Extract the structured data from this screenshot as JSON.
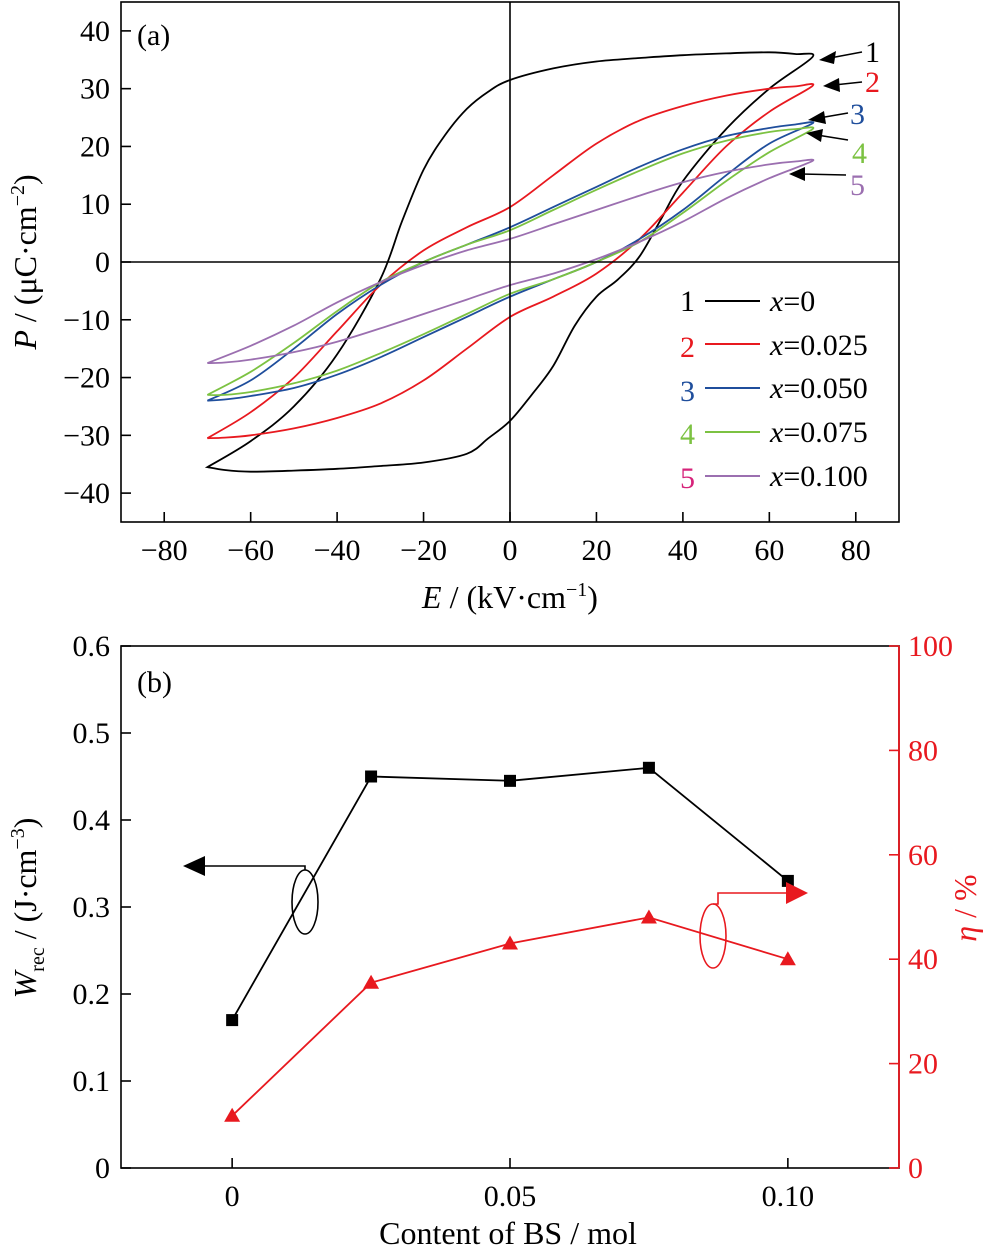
{
  "chart_data": [
    {
      "panel_label": "(a)",
      "type": "line",
      "xlabel": {
        "var": "E",
        "unit": " / (kV·cm",
        "exp": "−1",
        "close": ")"
      },
      "ylabel": {
        "var": "P",
        "unit": " / (μC·cm",
        "exp": "−2",
        "close": ")"
      },
      "xlim": [
        -90,
        90
      ],
      "ylim": [
        -45,
        45
      ],
      "xticks": [
        -80,
        -60,
        -40,
        -20,
        0,
        20,
        40,
        60,
        80
      ],
      "xtick_labels": [
        "−80",
        "−60",
        "−40",
        "−20",
        "0",
        "20",
        "40",
        "60",
        "80"
      ],
      "yticks": [
        -40,
        -30,
        -20,
        -10,
        0,
        10,
        20,
        30,
        40
      ],
      "ytick_labels": [
        "−40",
        "−30",
        "−20",
        "−10",
        "0",
        "10",
        "20",
        "30",
        "40"
      ],
      "legend_position": "bottom-right",
      "legend": [
        {
          "num": "1",
          "var": "x",
          "value": "=0"
        },
        {
          "num": "2",
          "var": "x",
          "value": "=0.025"
        },
        {
          "num": "3",
          "var": "x",
          "value": "=0.050"
        },
        {
          "num": "4",
          "var": "x",
          "value": "=0.075"
        },
        {
          "num": "5",
          "var": "x",
          "value": "=0.100"
        }
      ],
      "series": [
        {
          "id": "1",
          "color": "#000000",
          "num_color": "#000000",
          "upper": [
            [
              -70,
              -35.5
            ],
            [
              -60,
              -31
            ],
            [
              -50,
              -25
            ],
            [
              -40,
              -16
            ],
            [
              -30,
              -3
            ],
            [
              -25,
              7
            ],
            [
              -20,
              16
            ],
            [
              -15,
              22
            ],
            [
              -10,
              26.5
            ],
            [
              -5,
              29.5
            ],
            [
              0,
              31.5
            ],
            [
              10,
              33.5
            ],
            [
              20,
              34.7
            ],
            [
              30,
              35.3
            ],
            [
              40,
              35.8
            ],
            [
              50,
              36.1
            ],
            [
              60,
              36.3
            ],
            [
              66,
              36
            ],
            [
              70,
              35.5
            ]
          ],
          "lower": [
            [
              -70,
              -35.5
            ],
            [
              -66,
              -36
            ],
            [
              -60,
              -36.3
            ],
            [
              -50,
              -36.1
            ],
            [
              -40,
              -35.8
            ],
            [
              -30,
              -35.3
            ],
            [
              -20,
              -34.7
            ],
            [
              -10,
              -33.2
            ],
            [
              -5,
              -30.5
            ],
            [
              0,
              -27.5
            ],
            [
              5,
              -23
            ],
            [
              10,
              -18
            ],
            [
              15,
              -11
            ],
            [
              20,
              -6
            ],
            [
              25,
              -3
            ],
            [
              30,
              1
            ],
            [
              35,
              7.5
            ],
            [
              40,
              14
            ],
            [
              50,
              23
            ],
            [
              60,
              30
            ],
            [
              70,
              35.5
            ]
          ]
        },
        {
          "id": "2",
          "color": "#e8191f",
          "num_color": "#e8191f",
          "upper": [
            [
              -70,
              -30.5
            ],
            [
              -60,
              -26
            ],
            [
              -50,
              -20
            ],
            [
              -40,
              -12
            ],
            [
              -30,
              -4
            ],
            [
              -20,
              2
            ],
            [
              -10,
              6
            ],
            [
              0,
              9.5
            ],
            [
              10,
              15
            ],
            [
              20,
              20.5
            ],
            [
              30,
              24.5
            ],
            [
              40,
              27
            ],
            [
              50,
              28.8
            ],
            [
              60,
              30
            ],
            [
              66,
              30.4
            ],
            [
              70,
              30.5
            ]
          ],
          "lower": [
            [
              -70,
              -30.5
            ],
            [
              -66,
              -30.4
            ],
            [
              -60,
              -30
            ],
            [
              -50,
              -28.8
            ],
            [
              -40,
              -27
            ],
            [
              -30,
              -24.5
            ],
            [
              -20,
              -20.5
            ],
            [
              -10,
              -15
            ],
            [
              0,
              -9.5
            ],
            [
              10,
              -6
            ],
            [
              20,
              -2
            ],
            [
              30,
              4
            ],
            [
              40,
              12
            ],
            [
              50,
              20
            ],
            [
              60,
              26
            ],
            [
              70,
              30.5
            ]
          ]
        },
        {
          "id": "3",
          "color": "#1f4e9c",
          "num_color": "#1f4e9c",
          "upper": [
            [
              -70,
              -24
            ],
            [
              -60,
              -20.5
            ],
            [
              -50,
              -15
            ],
            [
              -40,
              -9
            ],
            [
              -30,
              -4
            ],
            [
              -20,
              0
            ],
            [
              -10,
              3
            ],
            [
              0,
              6
            ],
            [
              10,
              9.5
            ],
            [
              20,
              13
            ],
            [
              30,
              16.5
            ],
            [
              40,
              19.5
            ],
            [
              50,
              21.8
            ],
            [
              60,
              23.2
            ],
            [
              66,
              23.8
            ],
            [
              70,
              24
            ]
          ],
          "lower": [
            [
              -70,
              -24
            ],
            [
              -66,
              -23.8
            ],
            [
              -60,
              -23.2
            ],
            [
              -50,
              -21.8
            ],
            [
              -40,
              -19.5
            ],
            [
              -30,
              -16.5
            ],
            [
              -20,
              -13
            ],
            [
              -10,
              -9.5
            ],
            [
              0,
              -6
            ],
            [
              10,
              -3
            ],
            [
              20,
              0
            ],
            [
              30,
              4
            ],
            [
              40,
              9
            ],
            [
              50,
              15
            ],
            [
              60,
              20.5
            ],
            [
              70,
              24
            ]
          ]
        },
        {
          "id": "4",
          "color": "#7cc242",
          "num_color": "#7cc242",
          "upper": [
            [
              -70,
              -23
            ],
            [
              -60,
              -19
            ],
            [
              -50,
              -14
            ],
            [
              -40,
              -8.5
            ],
            [
              -30,
              -3.5
            ],
            [
              -20,
              0
            ],
            [
              -10,
              3
            ],
            [
              0,
              5.5
            ],
            [
              10,
              9
            ],
            [
              20,
              12.5
            ],
            [
              30,
              15.8
            ],
            [
              40,
              18.8
            ],
            [
              50,
              21
            ],
            [
              60,
              22.5
            ],
            [
              66,
              23
            ],
            [
              70,
              23
            ]
          ],
          "lower": [
            [
              -70,
              -23
            ],
            [
              -66,
              -23
            ],
            [
              -60,
              -22.5
            ],
            [
              -50,
              -21
            ],
            [
              -40,
              -18.8
            ],
            [
              -30,
              -15.8
            ],
            [
              -20,
              -12.5
            ],
            [
              -10,
              -9
            ],
            [
              0,
              -5.5
            ],
            [
              10,
              -3
            ],
            [
              20,
              0
            ],
            [
              30,
              3.5
            ],
            [
              40,
              8.5
            ],
            [
              50,
              14
            ],
            [
              60,
              19
            ],
            [
              70,
              23
            ]
          ]
        },
        {
          "id": "5",
          "color": "#9b6fb0",
          "num_color": "#9b6fb0",
          "num_legend_color": "#d6237a",
          "upper": [
            [
              -70,
              -17.5
            ],
            [
              -60,
              -14.5
            ],
            [
              -50,
              -11
            ],
            [
              -40,
              -7
            ],
            [
              -30,
              -3.5
            ],
            [
              -20,
              -0.5
            ],
            [
              -10,
              2
            ],
            [
              0,
              4
            ],
            [
              10,
              6.5
            ],
            [
              20,
              9
            ],
            [
              30,
              11.5
            ],
            [
              40,
              13.8
            ],
            [
              50,
              15.6
            ],
            [
              60,
              16.9
            ],
            [
              66,
              17.4
            ],
            [
              70,
              17.5
            ]
          ],
          "lower": [
            [
              -70,
              -17.5
            ],
            [
              -66,
              -17.4
            ],
            [
              -60,
              -16.9
            ],
            [
              -50,
              -15.6
            ],
            [
              -40,
              -13.8
            ],
            [
              -30,
              -11.5
            ],
            [
              -20,
              -9
            ],
            [
              -10,
              -6.5
            ],
            [
              0,
              -4
            ],
            [
              10,
              -2
            ],
            [
              20,
              0.5
            ],
            [
              30,
              3.5
            ],
            [
              40,
              7
            ],
            [
              50,
              11
            ],
            [
              60,
              14.5
            ],
            [
              70,
              17.5
            ]
          ]
        }
      ]
    },
    {
      "panel_label": "(b)",
      "type": "line",
      "xlabel": "Content of BS / mol",
      "ylabel_left": {
        "var": "W",
        "sub": "rec",
        "unit": " / (J·cm",
        "exp": "−3",
        "close": ")"
      },
      "ylabel_right": {
        "var": "η",
        "unit": " / %"
      },
      "xlim": [
        -0.02,
        0.12
      ],
      "ylim_left": [
        0,
        0.6
      ],
      "ylim_right": [
        0,
        100
      ],
      "xticks": [
        0,
        0.05,
        0.1
      ],
      "xtick_labels": [
        "0",
        "0.05",
        "0.10"
      ],
      "yticks_left": [
        0,
        0.1,
        0.2,
        0.3,
        0.4,
        0.5,
        0.6
      ],
      "ytick_labels_left": [
        "0",
        "0.1",
        "0.2",
        "0.3",
        "0.4",
        "0.5",
        "0.6"
      ],
      "yticks_right": [
        0,
        20,
        40,
        60,
        80,
        100
      ],
      "ytick_labels_right": [
        "0",
        "20",
        "40",
        "60",
        "80",
        "100"
      ],
      "x": [
        0,
        0.025,
        0.05,
        0.075,
        0.1
      ],
      "series": [
        {
          "axis": "left",
          "color": "#000000",
          "marker": "square",
          "values": [
            0.17,
            0.45,
            0.445,
            0.46,
            0.33
          ]
        },
        {
          "axis": "right",
          "color": "#e8191f",
          "marker": "triangle",
          "values": [
            10,
            35.5,
            43,
            48,
            40
          ]
        }
      ],
      "axis_color_right": "#e8191f"
    }
  ]
}
